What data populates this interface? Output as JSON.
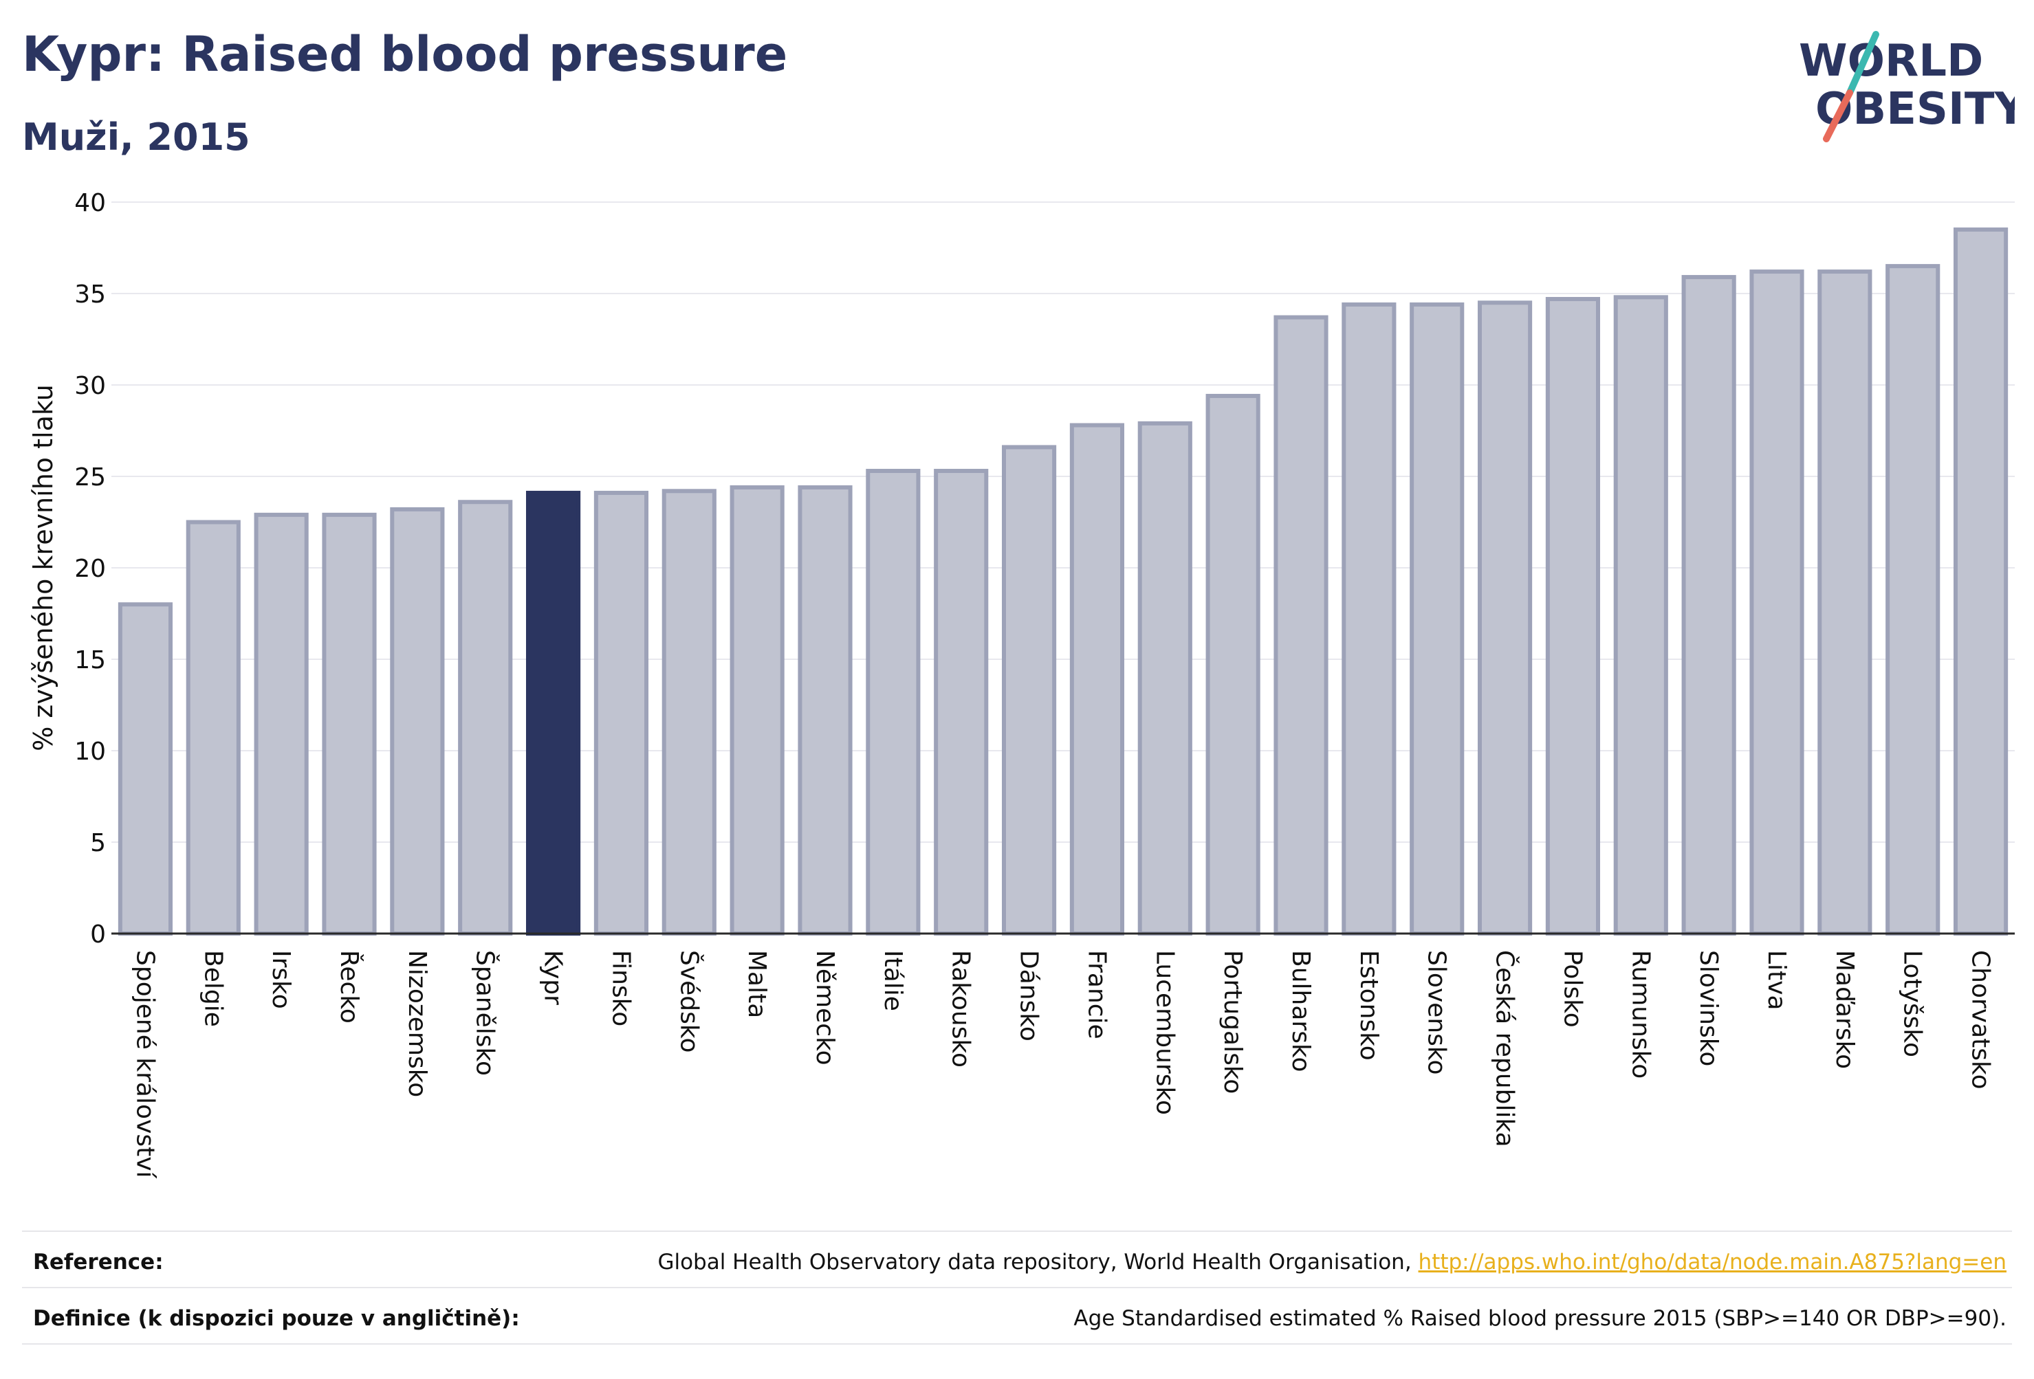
{
  "header": {
    "title": "Kypr: Raised blood pressure",
    "subtitle": "Muži, 2015"
  },
  "logo": {
    "line1": "WORLD",
    "line2": "OBESITY"
  },
  "colors": {
    "highlight_bar": "#2b3560",
    "bar_fill": "#c0c3d0",
    "bar_stroke": "#9da2b8",
    "accent_teal": "#3bb8b0",
    "accent_coral": "#e86a5a"
  },
  "chart_data": {
    "type": "bar",
    "ylabel": "% zvýšeného krevního tlaku",
    "ylim": [
      0,
      40
    ],
    "yticks": [
      0,
      5,
      10,
      15,
      20,
      25,
      30,
      35,
      40
    ],
    "grid": true,
    "highlight": "Kypr",
    "categories": [
      "Spojené království",
      "Belgie",
      "Irsko",
      "Řecko",
      "Nizozemsko",
      "Španělsko",
      "Kypr",
      "Finsko",
      "Švédsko",
      "Malta",
      "Německo",
      "Itálie",
      "Rakousko",
      "Dánsko",
      "Francie",
      "Lucembursko",
      "Portugalsko",
      "Bulharsko",
      "Estonsko",
      "Slovensko",
      "Česká republika",
      "Polsko",
      "Rumunsko",
      "Slovinsko",
      "Litva",
      "Maďarsko",
      "Lotyšsko",
      "Chorvatsko"
    ],
    "values": [
      18.0,
      22.5,
      22.9,
      22.9,
      23.2,
      23.6,
      24.1,
      24.1,
      24.2,
      24.4,
      24.4,
      25.3,
      25.3,
      26.6,
      27.8,
      27.9,
      29.4,
      33.7,
      34.4,
      34.4,
      34.5,
      34.7,
      34.8,
      35.9,
      36.2,
      36.2,
      36.5,
      38.5
    ]
  },
  "footer": {
    "reference_label": "Reference:",
    "reference_text": "Global Health Observatory data repository, World Health Organisation, ",
    "reference_link": "http://apps.who.int/gho/data/node.main.A875?lang=en",
    "definition_label": "Definice (k dispozici pouze v angličtině):",
    "definition_text": "Age Standardised estimated % Raised blood pressure 2015 (SBP>=140 OR DBP>=90)."
  }
}
